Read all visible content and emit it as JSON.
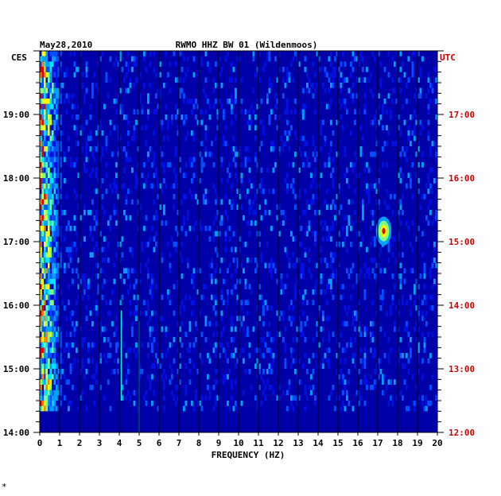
{
  "chart_data": {
    "type": "heatmap",
    "title": "RWMO HHZ BW 01 (Wildenmoos)",
    "date": "May28,2010",
    "left_tz": "CES",
    "right_tz": "UTC",
    "xlabel": "FREQUENCY (HZ)",
    "xlim": [
      0,
      20
    ],
    "x_ticks": [
      "0",
      "1",
      "2",
      "3",
      "4",
      "5",
      "6",
      "7",
      "8",
      "9",
      "10",
      "11",
      "12",
      "13",
      "14",
      "15",
      "16",
      "17",
      "18",
      "19",
      "20"
    ],
    "left_time_ticks": [
      "19:00",
      "18:00",
      "17:00",
      "16:00",
      "15:00",
      "14:00"
    ],
    "right_time_ticks": [
      "17:00",
      "16:00",
      "15:00",
      "14:00",
      "13:00",
      "12:00"
    ],
    "record_start": "14:20",
    "background_color": "#0000a8",
    "colors": [
      "#0000a8",
      "#0010e0",
      "#0050ff",
      "#00a0ff",
      "#00e8ff",
      "#80ff80",
      "#ffff00",
      "#ff8000",
      "#e00000"
    ],
    "grid": true,
    "features": [
      {
        "desc": "strong low-frequency energy",
        "x_range": [
          0.1,
          1.0
        ],
        "time": "whole record"
      },
      {
        "desc": "peak near 17.3 Hz",
        "x": 17.3,
        "time": "17:10"
      },
      {
        "desc": "line near 4.1 Hz",
        "x": 4.1,
        "time": "14:30-15:55"
      },
      {
        "desc": "line near 5.0 Hz",
        "x": 5.0,
        "time": "14:00-15:45"
      }
    ]
  },
  "footer_mark": "*"
}
